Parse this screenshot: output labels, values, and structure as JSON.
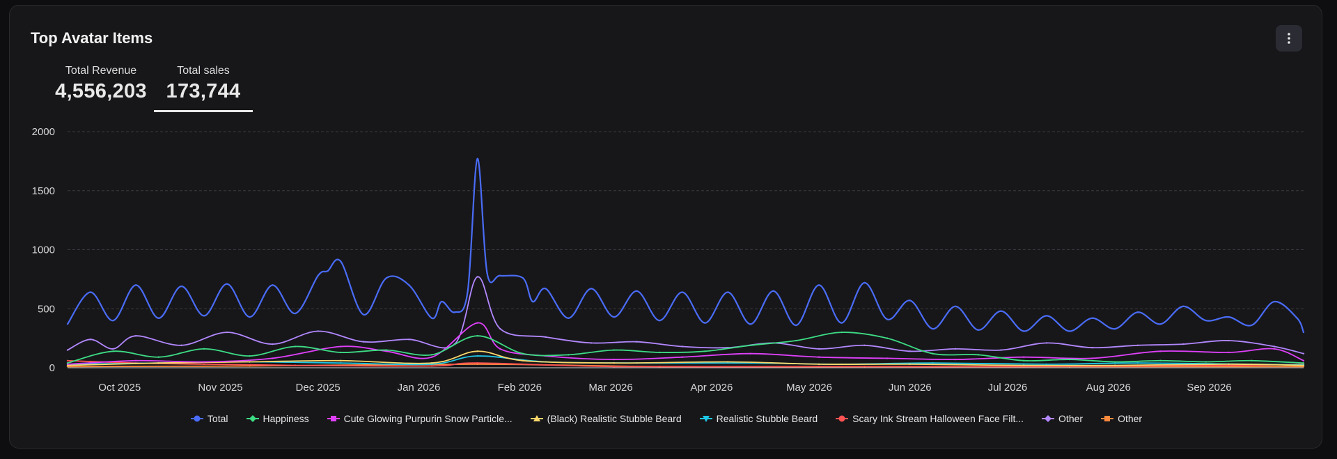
{
  "card": {
    "title": "Top Avatar Items"
  },
  "kpis": [
    {
      "label": "Total Revenue",
      "value": "4,556,203"
    },
    {
      "label": "Total sales",
      "value": "173,744",
      "selected": true
    }
  ],
  "menu_icon": "kebab-menu-icon",
  "chart_data": {
    "type": "line",
    "title": "",
    "xlabel": "",
    "ylabel": "",
    "ylim": [
      0,
      2000
    ],
    "yticks": [
      0,
      500,
      1000,
      1500,
      2000
    ],
    "grid": true,
    "legend_position": "bottom",
    "x_start": "2025-09-15",
    "x_end": "2026-09-30",
    "x_ticks": [
      {
        "label": "Oct 2025",
        "date": "2025-10-01"
      },
      {
        "label": "Nov 2025",
        "date": "2025-11-01"
      },
      {
        "label": "Dec 2025",
        "date": "2025-12-01"
      },
      {
        "label": "Jan 2026",
        "date": "2026-01-01"
      },
      {
        "label": "Feb 2026",
        "date": "2026-02-01"
      },
      {
        "label": "Mar 2026",
        "date": "2026-03-01"
      },
      {
        "label": "Apr 2026",
        "date": "2026-04-01"
      },
      {
        "label": "May 2026",
        "date": "2026-05-01"
      },
      {
        "label": "Jun 2026",
        "date": "2026-06-01"
      },
      {
        "label": "Jul 2026",
        "date": "2026-07-01"
      },
      {
        "label": "Aug 2026",
        "date": "2026-08-01"
      },
      {
        "label": "Sep 2026",
        "date": "2026-09-01"
      }
    ],
    "series": [
      {
        "name": "Total",
        "color": "#4a6cf7",
        "marker": "circle",
        "points": [
          [
            "2025-09-15",
            370
          ],
          [
            "2025-09-22",
            640
          ],
          [
            "2025-09-29",
            400
          ],
          [
            "2025-10-06",
            700
          ],
          [
            "2025-10-13",
            420
          ],
          [
            "2025-10-20",
            690
          ],
          [
            "2025-10-27",
            440
          ],
          [
            "2025-11-03",
            710
          ],
          [
            "2025-11-10",
            430
          ],
          [
            "2025-11-17",
            700
          ],
          [
            "2025-11-24",
            460
          ],
          [
            "2025-12-01",
            780
          ],
          [
            "2025-12-04",
            820
          ],
          [
            "2025-12-08",
            900
          ],
          [
            "2025-12-15",
            450
          ],
          [
            "2025-12-22",
            760
          ],
          [
            "2025-12-29",
            700
          ],
          [
            "2026-01-05",
            420
          ],
          [
            "2026-01-08",
            560
          ],
          [
            "2026-01-12",
            470
          ],
          [
            "2026-01-16",
            640
          ],
          [
            "2026-01-19",
            1770
          ],
          [
            "2026-01-22",
            800
          ],
          [
            "2026-01-26",
            780
          ],
          [
            "2026-02-02",
            760
          ],
          [
            "2026-02-05",
            560
          ],
          [
            "2026-02-09",
            670
          ],
          [
            "2026-02-16",
            420
          ],
          [
            "2026-02-23",
            670
          ],
          [
            "2026-03-02",
            430
          ],
          [
            "2026-03-09",
            650
          ],
          [
            "2026-03-16",
            400
          ],
          [
            "2026-03-23",
            640
          ],
          [
            "2026-03-30",
            380
          ],
          [
            "2026-04-06",
            640
          ],
          [
            "2026-04-13",
            370
          ],
          [
            "2026-04-20",
            650
          ],
          [
            "2026-04-27",
            360
          ],
          [
            "2026-05-04",
            700
          ],
          [
            "2026-05-11",
            380
          ],
          [
            "2026-05-18",
            720
          ],
          [
            "2026-05-25",
            410
          ],
          [
            "2026-06-01",
            570
          ],
          [
            "2026-06-08",
            330
          ],
          [
            "2026-06-15",
            520
          ],
          [
            "2026-06-22",
            320
          ],
          [
            "2026-06-29",
            480
          ],
          [
            "2026-07-06",
            310
          ],
          [
            "2026-07-13",
            440
          ],
          [
            "2026-07-20",
            310
          ],
          [
            "2026-07-27",
            420
          ],
          [
            "2026-08-03",
            330
          ],
          [
            "2026-08-10",
            470
          ],
          [
            "2026-08-17",
            370
          ],
          [
            "2026-08-24",
            520
          ],
          [
            "2026-08-31",
            400
          ],
          [
            "2026-09-07",
            430
          ],
          [
            "2026-09-14",
            360
          ],
          [
            "2026-09-21",
            560
          ],
          [
            "2026-09-28",
            420
          ],
          [
            "2026-09-30",
            300
          ]
        ]
      },
      {
        "name": "Happiness",
        "color": "#3ddc84",
        "marker": "diamond",
        "points": [
          [
            "2025-09-15",
            40
          ],
          [
            "2025-09-29",
            140
          ],
          [
            "2025-10-13",
            90
          ],
          [
            "2025-10-27",
            160
          ],
          [
            "2025-11-10",
            100
          ],
          [
            "2025-11-24",
            180
          ],
          [
            "2025-12-08",
            130
          ],
          [
            "2025-12-22",
            150
          ],
          [
            "2026-01-05",
            110
          ],
          [
            "2026-01-19",
            270
          ],
          [
            "2026-02-02",
            120
          ],
          [
            "2026-02-16",
            110
          ],
          [
            "2026-03-02",
            150
          ],
          [
            "2026-03-16",
            130
          ],
          [
            "2026-03-30",
            140
          ],
          [
            "2026-04-13",
            190
          ],
          [
            "2026-04-27",
            230
          ],
          [
            "2026-05-11",
            300
          ],
          [
            "2026-05-25",
            250
          ],
          [
            "2026-06-08",
            120
          ],
          [
            "2026-06-22",
            110
          ],
          [
            "2026-07-06",
            60
          ],
          [
            "2026-07-20",
            70
          ],
          [
            "2026-08-03",
            50
          ],
          [
            "2026-08-17",
            60
          ],
          [
            "2026-08-31",
            50
          ],
          [
            "2026-09-14",
            60
          ],
          [
            "2026-09-30",
            40
          ]
        ]
      },
      {
        "name": "Cute Glowing Purpurin Snow Particle...",
        "color": "#e040fb",
        "marker": "square",
        "points": [
          [
            "2025-09-15",
            30
          ],
          [
            "2025-10-06",
            60
          ],
          [
            "2025-10-27",
            50
          ],
          [
            "2025-11-17",
            80
          ],
          [
            "2025-12-08",
            180
          ],
          [
            "2025-12-22",
            140
          ],
          [
            "2026-01-05",
            90
          ],
          [
            "2026-01-19",
            380
          ],
          [
            "2026-01-26",
            160
          ],
          [
            "2026-02-09",
            100
          ],
          [
            "2026-03-02",
            70
          ],
          [
            "2026-03-23",
            90
          ],
          [
            "2026-04-13",
            120
          ],
          [
            "2026-05-04",
            90
          ],
          [
            "2026-05-25",
            80
          ],
          [
            "2026-06-15",
            70
          ],
          [
            "2026-07-06",
            90
          ],
          [
            "2026-07-27",
            80
          ],
          [
            "2026-08-17",
            140
          ],
          [
            "2026-09-07",
            130
          ],
          [
            "2026-09-21",
            160
          ],
          [
            "2026-09-30",
            60
          ]
        ]
      },
      {
        "name": "(Black) Realistic Stubble Beard",
        "color": "#f9d76a",
        "marker": "triangle-up",
        "points": [
          [
            "2025-09-15",
            20
          ],
          [
            "2025-10-13",
            40
          ],
          [
            "2025-11-10",
            50
          ],
          [
            "2025-12-08",
            60
          ],
          [
            "2026-01-05",
            40
          ],
          [
            "2026-01-19",
            140
          ],
          [
            "2026-02-02",
            60
          ],
          [
            "2026-03-02",
            40
          ],
          [
            "2026-04-06",
            50
          ],
          [
            "2026-05-04",
            30
          ],
          [
            "2026-06-01",
            30
          ],
          [
            "2026-07-06",
            20
          ],
          [
            "2026-08-03",
            20
          ],
          [
            "2026-09-07",
            30
          ],
          [
            "2026-09-30",
            20
          ]
        ]
      },
      {
        "name": "Realistic Stubble Beard",
        "color": "#1ec7e6",
        "marker": "triangle-down",
        "points": [
          [
            "2025-09-15",
            30
          ],
          [
            "2025-10-13",
            40
          ],
          [
            "2025-11-10",
            50
          ],
          [
            "2025-12-08",
            40
          ],
          [
            "2026-01-05",
            30
          ],
          [
            "2026-01-19",
            100
          ],
          [
            "2026-02-09",
            50
          ],
          [
            "2026-03-09",
            40
          ],
          [
            "2026-04-13",
            40
          ],
          [
            "2026-05-11",
            30
          ],
          [
            "2026-06-08",
            40
          ],
          [
            "2026-07-13",
            30
          ],
          [
            "2026-08-10",
            40
          ],
          [
            "2026-09-14",
            30
          ],
          [
            "2026-09-30",
            25
          ]
        ]
      },
      {
        "name": "Scary Ink Stream Halloween Face Filt...",
        "color": "#ff5252",
        "marker": "circle",
        "points": [
          [
            "2025-09-15",
            60
          ],
          [
            "2025-10-06",
            40
          ],
          [
            "2025-10-27",
            30
          ],
          [
            "2025-11-24",
            20
          ],
          [
            "2026-01-05",
            15
          ],
          [
            "2026-01-19",
            40
          ],
          [
            "2026-03-02",
            10
          ],
          [
            "2026-05-04",
            10
          ],
          [
            "2026-07-06",
            10
          ],
          [
            "2026-09-07",
            20
          ],
          [
            "2026-09-30",
            30
          ]
        ]
      },
      {
        "name": "Other",
        "color": "#b388ff",
        "marker": "diamond",
        "points": [
          [
            "2025-09-15",
            150
          ],
          [
            "2025-09-22",
            240
          ],
          [
            "2025-09-29",
            160
          ],
          [
            "2025-10-06",
            270
          ],
          [
            "2025-10-20",
            190
          ],
          [
            "2025-11-03",
            300
          ],
          [
            "2025-11-17",
            200
          ],
          [
            "2025-12-01",
            310
          ],
          [
            "2025-12-15",
            220
          ],
          [
            "2025-12-29",
            240
          ],
          [
            "2026-01-12",
            200
          ],
          [
            "2026-01-19",
            770
          ],
          [
            "2026-01-26",
            330
          ],
          [
            "2026-02-09",
            260
          ],
          [
            "2026-02-23",
            210
          ],
          [
            "2026-03-09",
            220
          ],
          [
            "2026-03-23",
            180
          ],
          [
            "2026-04-06",
            170
          ],
          [
            "2026-04-20",
            210
          ],
          [
            "2026-05-04",
            160
          ],
          [
            "2026-05-18",
            190
          ],
          [
            "2026-06-01",
            140
          ],
          [
            "2026-06-15",
            160
          ],
          [
            "2026-06-29",
            150
          ],
          [
            "2026-07-13",
            210
          ],
          [
            "2026-07-27",
            170
          ],
          [
            "2026-08-10",
            190
          ],
          [
            "2026-08-24",
            200
          ],
          [
            "2026-09-07",
            230
          ],
          [
            "2026-09-21",
            180
          ],
          [
            "2026-09-30",
            120
          ]
        ]
      },
      {
        "name": "Other",
        "color": "#ff8a3d",
        "marker": "square",
        "points": [
          [
            "2025-09-15",
            10
          ],
          [
            "2025-11-10",
            15
          ],
          [
            "2026-01-19",
            30
          ],
          [
            "2026-03-16",
            10
          ],
          [
            "2026-05-18",
            10
          ],
          [
            "2026-07-20",
            10
          ],
          [
            "2026-09-30",
            10
          ]
        ]
      }
    ]
  }
}
